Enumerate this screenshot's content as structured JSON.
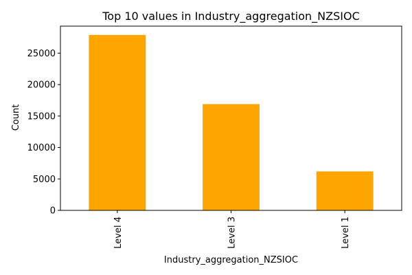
{
  "chart_data": {
    "type": "bar",
    "title": "Top 10 values in Industry_aggregation_NZSIOC",
    "xlabel": "Industry_aggregation_NZSIOC",
    "ylabel": "Count",
    "categories": [
      "Level 4",
      "Level 3",
      "Level 1"
    ],
    "values": [
      27900,
      16900,
      6200
    ],
    "ylim": [
      0,
      29300
    ],
    "yticks": [
      0,
      5000,
      10000,
      15000,
      20000,
      25000
    ],
    "ytick_labels": [
      "0",
      "5000",
      "10000",
      "15000",
      "20000",
      "25000"
    ],
    "bar_color": "#ffa500",
    "grid": false,
    "legend": "none"
  }
}
